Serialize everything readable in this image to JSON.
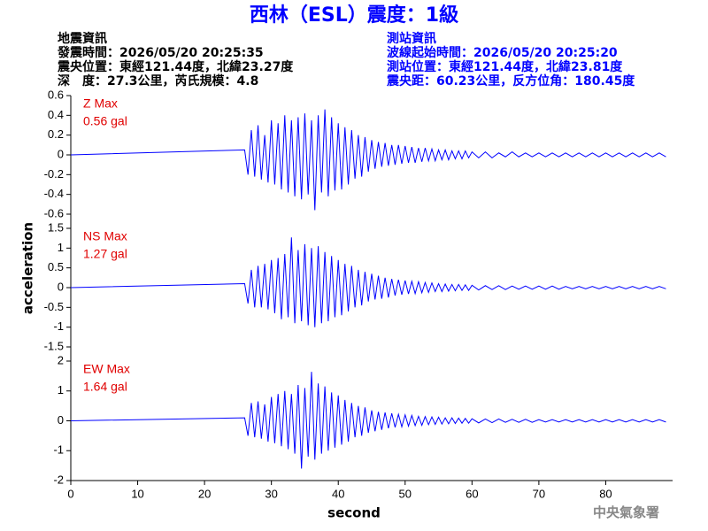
{
  "header": {
    "title": "西林（ESL）震度：1級",
    "left": [
      "地震資訊",
      "發震時間：2026/05/20 20:25:35",
      "震央位置：東經121.44度，北緯23.27度",
      "深　度：27.3公里，芮氏規模：4.8"
    ],
    "right": [
      "測站資訊",
      "波線起始時間：2026/05/20 20:25:20",
      "測站位置：東經121.44度，北緯23.81度",
      "震央距：60.23公里，反方位角：180.45度"
    ]
  },
  "footer": "中央氣象署",
  "chart_data": [
    {
      "type": "line",
      "annotations": [
        "Z Max",
        "0.56 gal"
      ],
      "ylabel": "acceleration",
      "xlim": [
        0,
        90
      ],
      "ylim": [
        -0.6,
        0.6
      ],
      "yticks": [
        0.6,
        0.4,
        0.2,
        0,
        -0.2,
        -0.4,
        -0.6
      ],
      "x": [
        0,
        26,
        26.5,
        27,
        27.5,
        28,
        28.5,
        29,
        29.5,
        30,
        30.5,
        31,
        31.5,
        32,
        32.5,
        33,
        33.5,
        34,
        34.5,
        35,
        35.5,
        36,
        36.5,
        37,
        37.5,
        38,
        38.5,
        39,
        39.5,
        40,
        40.5,
        41,
        41.5,
        42,
        42.5,
        43,
        43.5,
        44,
        44.5,
        45,
        45.5,
        46,
        46.5,
        47,
        47.5,
        48,
        48.5,
        49,
        49.5,
        50,
        50.5,
        51,
        51.5,
        52,
        52.5,
        53,
        53.5,
        54,
        54.5,
        55,
        55.5,
        56,
        56.5,
        57,
        57.5,
        58,
        58.5,
        59,
        59.5,
        60,
        61,
        62,
        63,
        64,
        65,
        66,
        67,
        68,
        69,
        70,
        71,
        72,
        73,
        74,
        75,
        76,
        77,
        78,
        79,
        80,
        81,
        82,
        83,
        84,
        85,
        86,
        87,
        88,
        89
      ],
      "series": [
        {
          "color": "#0000ff",
          "values": [
            0,
            0.05,
            -0.2,
            0.25,
            -0.22,
            0.3,
            -0.25,
            0.2,
            -0.28,
            0.35,
            -0.3,
            0.32,
            -0.35,
            0.4,
            -0.38,
            0.35,
            -0.42,
            0.38,
            -0.45,
            0.42,
            -0.4,
            0.35,
            -0.56,
            0.4,
            -0.38,
            0.46,
            -0.42,
            0.38,
            -0.36,
            0.32,
            -0.35,
            0.28,
            -0.3,
            0.25,
            -0.24,
            0.2,
            -0.22,
            0.18,
            -0.17,
            0.15,
            -0.14,
            0.13,
            -0.12,
            0.12,
            -0.11,
            0.1,
            -0.1,
            0.1,
            -0.09,
            0.09,
            -0.08,
            0.08,
            -0.08,
            0.07,
            -0.07,
            0.07,
            -0.06,
            0.06,
            -0.06,
            0.05,
            -0.05,
            0.05,
            -0.05,
            0.04,
            -0.04,
            0.04,
            -0.04,
            0.04,
            -0.03,
            0.03,
            -0.03,
            0.03,
            -0.03,
            0.02,
            -0.02,
            0.03,
            -0.02,
            0.02,
            -0.02,
            0.02,
            -0.02,
            0.02,
            -0.02,
            0.02,
            -0.02,
            0.02,
            -0.02,
            0.02,
            -0.02,
            0.02,
            -0.02,
            0.02,
            -0.02,
            0.02,
            -0.02,
            0.02,
            -0.02,
            0.02,
            -0.02
          ]
        }
      ]
    },
    {
      "type": "line",
      "annotations": [
        "NS Max",
        "1.27 gal"
      ],
      "xlim": [
        0,
        90
      ],
      "ylim": [
        -1.5,
        1.5
      ],
      "yticks": [
        1.5,
        1,
        0.5,
        0,
        -0.5,
        -1,
        -1.5
      ],
      "x": [
        0,
        26,
        26.5,
        27,
        27.5,
        28,
        28.5,
        29,
        29.5,
        30,
        30.5,
        31,
        31.5,
        32,
        32.5,
        33,
        33.5,
        34,
        34.5,
        35,
        35.5,
        36,
        36.5,
        37,
        37.5,
        38,
        38.5,
        39,
        39.5,
        40,
        40.5,
        41,
        41.5,
        42,
        42.5,
        43,
        43.5,
        44,
        44.5,
        45,
        45.5,
        46,
        46.5,
        47,
        47.5,
        48,
        48.5,
        49,
        49.5,
        50,
        50.5,
        51,
        51.5,
        52,
        52.5,
        53,
        53.5,
        54,
        54.5,
        55,
        55.5,
        56,
        56.5,
        57,
        57.5,
        58,
        58.5,
        59,
        59.5,
        60,
        61,
        62,
        63,
        64,
        65,
        66,
        67,
        68,
        69,
        70,
        71,
        72,
        73,
        74,
        75,
        76,
        77,
        78,
        79,
        80,
        81,
        82,
        83,
        84,
        85,
        86,
        87,
        88,
        89
      ],
      "series": [
        {
          "color": "#0000ff",
          "values": [
            0,
            0.1,
            -0.4,
            0.45,
            -0.5,
            0.55,
            -0.5,
            0.6,
            -0.55,
            0.7,
            -0.65,
            0.75,
            -0.8,
            0.85,
            -0.75,
            1.27,
            -0.9,
            0.95,
            -0.85,
            1.1,
            -0.95,
            1.0,
            -1.0,
            1.05,
            -0.9,
            0.9,
            -0.85,
            0.8,
            -0.75,
            0.7,
            -0.7,
            0.6,
            -0.6,
            0.55,
            -0.5,
            0.45,
            -0.45,
            0.4,
            -0.35,
            0.35,
            -0.3,
            0.3,
            -0.28,
            0.25,
            -0.25,
            0.22,
            -0.2,
            0.2,
            -0.18,
            0.18,
            -0.16,
            0.16,
            -0.15,
            0.15,
            -0.13,
            0.13,
            -0.12,
            0.12,
            -0.1,
            0.1,
            -0.1,
            0.09,
            -0.09,
            0.08,
            -0.08,
            0.08,
            -0.07,
            0.07,
            -0.07,
            0.06,
            -0.06,
            0.05,
            -0.05,
            0.05,
            -0.05,
            0.04,
            -0.04,
            0.04,
            -0.04,
            0.04,
            -0.04,
            0.04,
            -0.04,
            0.03,
            -0.03,
            0.03,
            -0.03,
            0.03,
            -0.03,
            0.03,
            -0.03,
            0.03,
            -0.03,
            0.03,
            -0.03,
            0.03,
            -0.03,
            0.03,
            -0.03
          ]
        }
      ]
    },
    {
      "type": "line",
      "annotations": [
        "EW Max",
        "1.64 gal"
      ],
      "xlabel": "second",
      "xlim": [
        0,
        90
      ],
      "xticks": [
        0,
        10,
        20,
        30,
        40,
        50,
        60,
        70,
        80
      ],
      "ylim": [
        -2,
        2
      ],
      "yticks": [
        2,
        1,
        0,
        -1,
        -2
      ],
      "x": [
        0,
        26,
        26.5,
        27,
        27.5,
        28,
        28.5,
        29,
        29.5,
        30,
        30.5,
        31,
        31.5,
        32,
        32.5,
        33,
        33.5,
        34,
        34.5,
        35,
        35.5,
        36,
        36.5,
        37,
        37.5,
        38,
        38.5,
        39,
        39.5,
        40,
        40.5,
        41,
        41.5,
        42,
        42.5,
        43,
        43.5,
        44,
        44.5,
        45,
        45.5,
        46,
        46.5,
        47,
        47.5,
        48,
        48.5,
        49,
        49.5,
        50,
        50.5,
        51,
        51.5,
        52,
        52.5,
        53,
        53.5,
        54,
        54.5,
        55,
        55.5,
        56,
        56.5,
        57,
        57.5,
        58,
        58.5,
        59,
        59.5,
        60,
        61,
        62,
        63,
        64,
        65,
        66,
        67,
        68,
        69,
        70,
        71,
        72,
        73,
        74,
        75,
        76,
        77,
        78,
        79,
        80,
        81,
        82,
        83,
        84,
        85,
        86,
        87,
        88,
        89
      ],
      "series": [
        {
          "color": "#0000ff",
          "values": [
            0,
            0.1,
            -0.5,
            0.6,
            -0.55,
            0.65,
            -0.6,
            0.55,
            -0.7,
            0.8,
            -0.75,
            0.9,
            -0.85,
            1.0,
            -0.95,
            0.9,
            -1.1,
            1.2,
            -1.6,
            1.1,
            -1.2,
            1.64,
            -1.3,
            1.25,
            -1.1,
            1.15,
            -1.0,
            0.95,
            -0.9,
            0.85,
            -0.8,
            0.7,
            -0.7,
            0.6,
            -0.55,
            0.5,
            -0.5,
            0.45,
            -0.4,
            0.35,
            -0.35,
            0.3,
            -0.3,
            0.28,
            -0.25,
            0.25,
            -0.22,
            0.22,
            -0.2,
            0.2,
            -0.18,
            0.18,
            -0.16,
            0.15,
            -0.15,
            0.14,
            -0.13,
            0.13,
            -0.12,
            0.12,
            -0.11,
            0.1,
            -0.1,
            0.1,
            -0.09,
            0.09,
            -0.08,
            0.08,
            -0.08,
            0.07,
            -0.07,
            0.06,
            -0.06,
            0.06,
            -0.05,
            0.05,
            -0.05,
            0.05,
            -0.05,
            0.04,
            -0.04,
            0.04,
            -0.04,
            0.04,
            -0.04,
            0.04,
            -0.04,
            0.04,
            -0.04,
            0.04,
            -0.04,
            0.04,
            -0.04,
            0.04,
            -0.04,
            0.04,
            -0.04,
            0.04,
            -0.04
          ]
        }
      ]
    }
  ]
}
